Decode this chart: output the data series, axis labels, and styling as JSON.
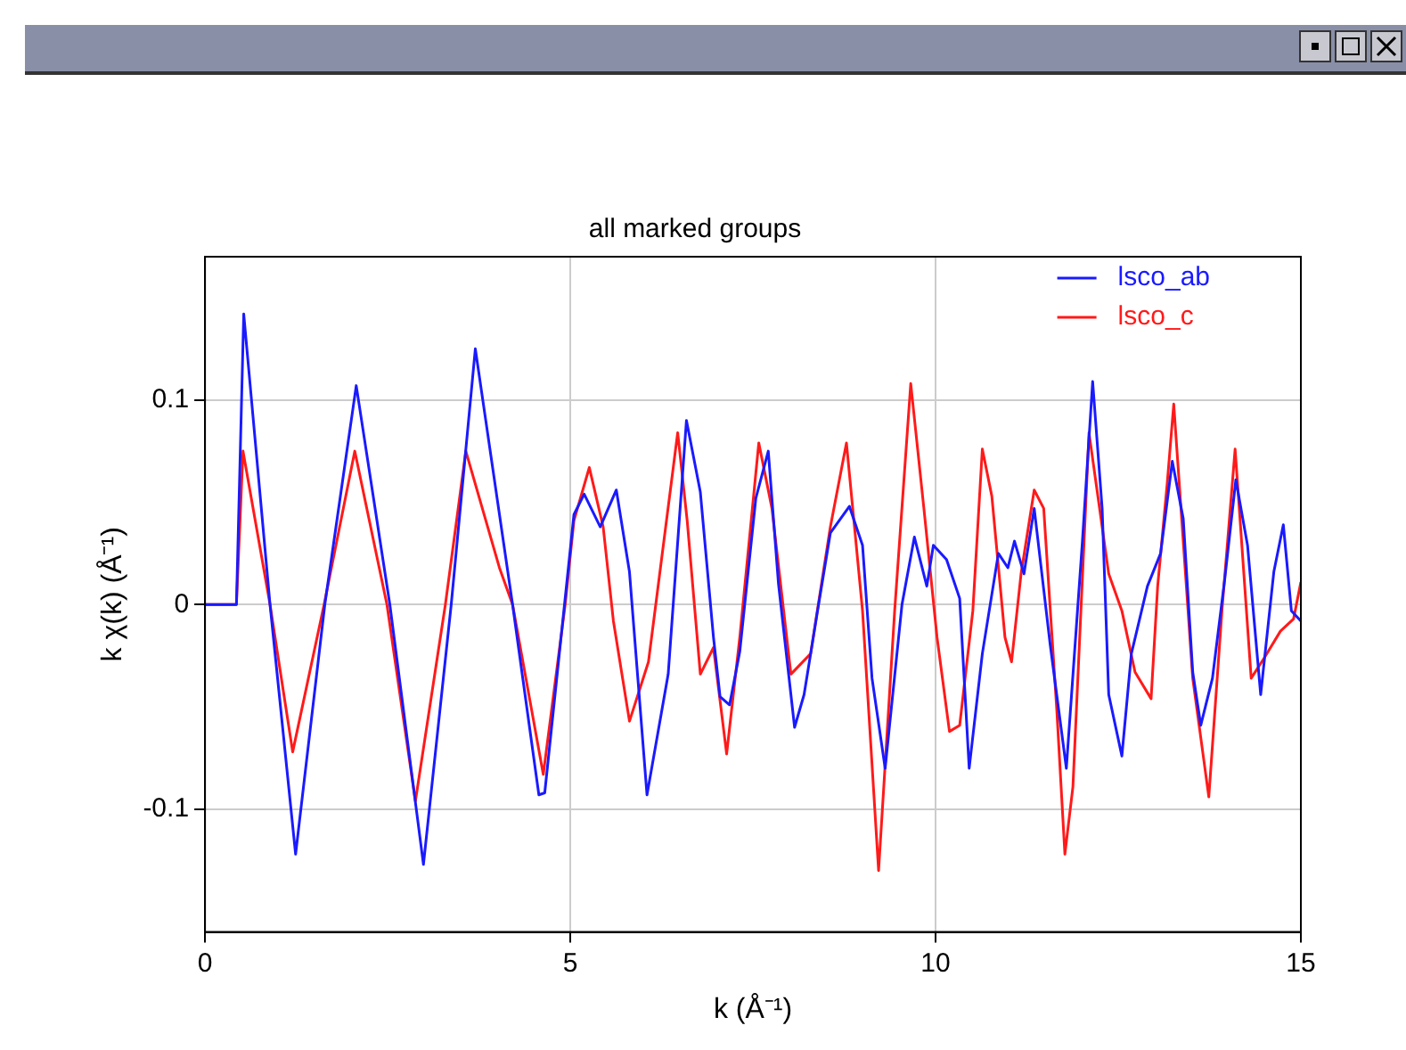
{
  "chart_data": {
    "type": "line",
    "title": "all marked groups",
    "xlabel": "k (Å⁻¹)",
    "ylabel": "k χ(k) (Å⁻¹)",
    "xlim": [
      0,
      15
    ],
    "xticks": [
      0,
      5,
      10,
      15
    ],
    "ylim": [
      -0.16,
      0.17
    ],
    "yticks": [
      -0.1,
      0,
      0.1
    ],
    "grid": true,
    "legend": "top right",
    "marker": "none",
    "line_style": "solid",
    "series": [
      {
        "name": "lsco_ab",
        "color": "#1a1aff",
        "x": [
          0,
          0.43,
          0.53,
          0.89,
          1.24,
          1.64,
          2.07,
          2.53,
          2.99,
          3.37,
          3.7,
          4.21,
          4.57,
          4.65,
          5.05,
          5.19,
          5.41,
          5.63,
          5.81,
          6.05,
          6.34,
          6.59,
          6.78,
          6.96,
          7.05,
          7.18,
          7.32,
          7.54,
          7.71,
          7.85,
          8.07,
          8.2,
          8.38,
          8.56,
          8.82,
          9.0,
          9.13,
          9.31,
          9.54,
          9.71,
          9.88,
          9.97,
          10.15,
          10.33,
          10.46,
          10.64,
          10.86,
          10.99,
          11.08,
          11.21,
          11.35,
          11.57,
          11.79,
          12.01,
          12.15,
          12.28,
          12.37,
          12.55,
          12.68,
          12.9,
          13.08,
          13.24,
          13.39,
          13.52,
          13.63,
          13.79,
          13.96,
          14.11,
          14.27,
          14.45,
          14.63,
          14.76,
          14.87,
          15
        ],
        "values": [
          0,
          0,
          0.142,
          0,
          -0.122,
          0,
          0.107,
          0,
          -0.127,
          0,
          0.125,
          0,
          -0.093,
          -0.092,
          0.044,
          0.054,
          0.038,
          0.056,
          0.016,
          -0.093,
          -0.034,
          0.09,
          0.055,
          -0.016,
          -0.045,
          -0.049,
          -0.023,
          0.052,
          0.075,
          0.01,
          -0.06,
          -0.044,
          -0.004,
          0.035,
          0.048,
          0.029,
          -0.036,
          -0.08,
          0,
          0.033,
          0.009,
          0.029,
          0.022,
          0.003,
          -0.08,
          -0.024,
          0.025,
          0.018,
          0.031,
          0.015,
          0.047,
          -0.02,
          -0.08,
          0.031,
          0.109,
          0.047,
          -0.044,
          -0.074,
          -0.024,
          0.009,
          0.025,
          0.07,
          0.042,
          -0.033,
          -0.059,
          -0.036,
          0.013,
          0.061,
          0.029,
          -0.044,
          0.016,
          0.039,
          -0.003,
          -0.008
        ]
      },
      {
        "name": "lsco_c",
        "color": "#ff1a1a",
        "x": [
          0,
          0.43,
          0.52,
          0.89,
          1.2,
          1.63,
          2.05,
          2.49,
          2.88,
          3.29,
          3.57,
          4.03,
          4.21,
          4.63,
          4.93,
          5.05,
          5.26,
          5.45,
          5.59,
          5.81,
          6.07,
          6.47,
          6.6,
          6.78,
          6.96,
          7.14,
          7.32,
          7.58,
          7.76,
          8.02,
          8.29,
          8.56,
          8.78,
          9.0,
          9.22,
          9.44,
          9.66,
          9.84,
          10.02,
          10.19,
          10.33,
          10.51,
          10.64,
          10.77,
          10.95,
          11.04,
          11.17,
          11.35,
          11.48,
          11.66,
          11.77,
          11.88,
          12.1,
          12.37,
          12.55,
          12.73,
          12.95,
          13.04,
          13.17,
          13.26,
          13.39,
          13.52,
          13.74,
          13.92,
          14.1,
          14.32,
          14.5,
          14.72,
          14.9,
          15
        ],
        "values": [
          0,
          0,
          0.075,
          0,
          -0.072,
          0,
          0.075,
          0,
          -0.096,
          0,
          0.075,
          0.018,
          0,
          -0.083,
          0,
          0.041,
          0.067,
          0.038,
          -0.008,
          -0.057,
          -0.028,
          0.084,
          0.041,
          -0.034,
          -0.021,
          -0.073,
          -0.016,
          0.079,
          0.047,
          -0.034,
          -0.024,
          0.038,
          0.079,
          -0.003,
          -0.13,
          -0.003,
          0.108,
          0.047,
          -0.016,
          -0.062,
          -0.059,
          -0.003,
          0.076,
          0.053,
          -0.016,
          -0.028,
          0.015,
          0.056,
          0.047,
          -0.052,
          -0.122,
          -0.089,
          0.084,
          0.015,
          -0.003,
          -0.033,
          -0.046,
          0.009,
          0.059,
          0.098,
          0.031,
          -0.036,
          -0.094,
          -0.003,
          0.076,
          -0.036,
          -0.026,
          -0.013,
          -0.007,
          0.011
        ]
      }
    ]
  }
}
